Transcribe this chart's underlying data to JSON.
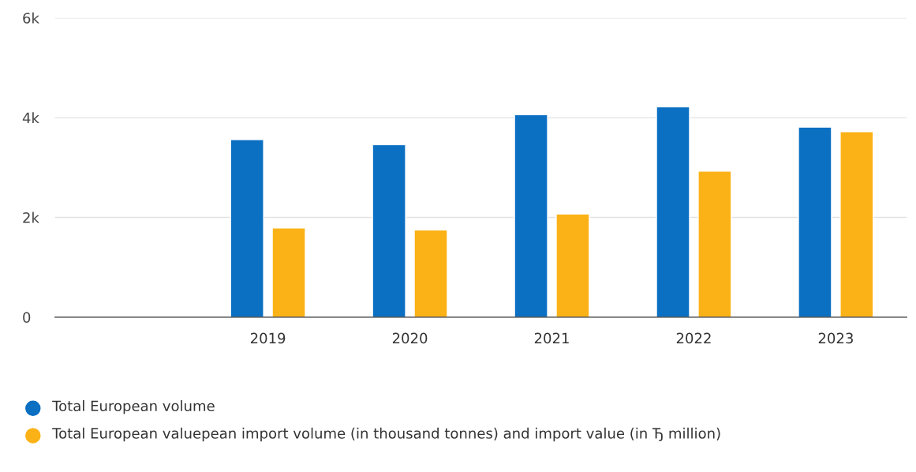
{
  "chart_data": {
    "type": "bar",
    "categories": [
      null,
      "2019",
      "2020",
      "2021",
      "2022",
      "2023"
    ],
    "series": [
      {
        "name": "Total European volume",
        "color": "#0b6fc2",
        "values": [
          null,
          3560,
          3460,
          4060,
          4220,
          3810
        ]
      },
      {
        "name": "Total European valuepean import volume (in thousand tonnes) and import value (in Ђ million)",
        "color": "#fbb216",
        "values": [
          null,
          1790,
          1750,
          2070,
          2930,
          3720
        ]
      }
    ],
    "ylim": [
      0,
      6000
    ],
    "yticks": [
      0,
      {
        "value": 2000,
        "label": "2k"
      },
      {
        "value": 4000,
        "label": "4k"
      },
      {
        "value": 6000,
        "label": "6k"
      }
    ],
    "grid": "y",
    "legend": "bottom"
  }
}
